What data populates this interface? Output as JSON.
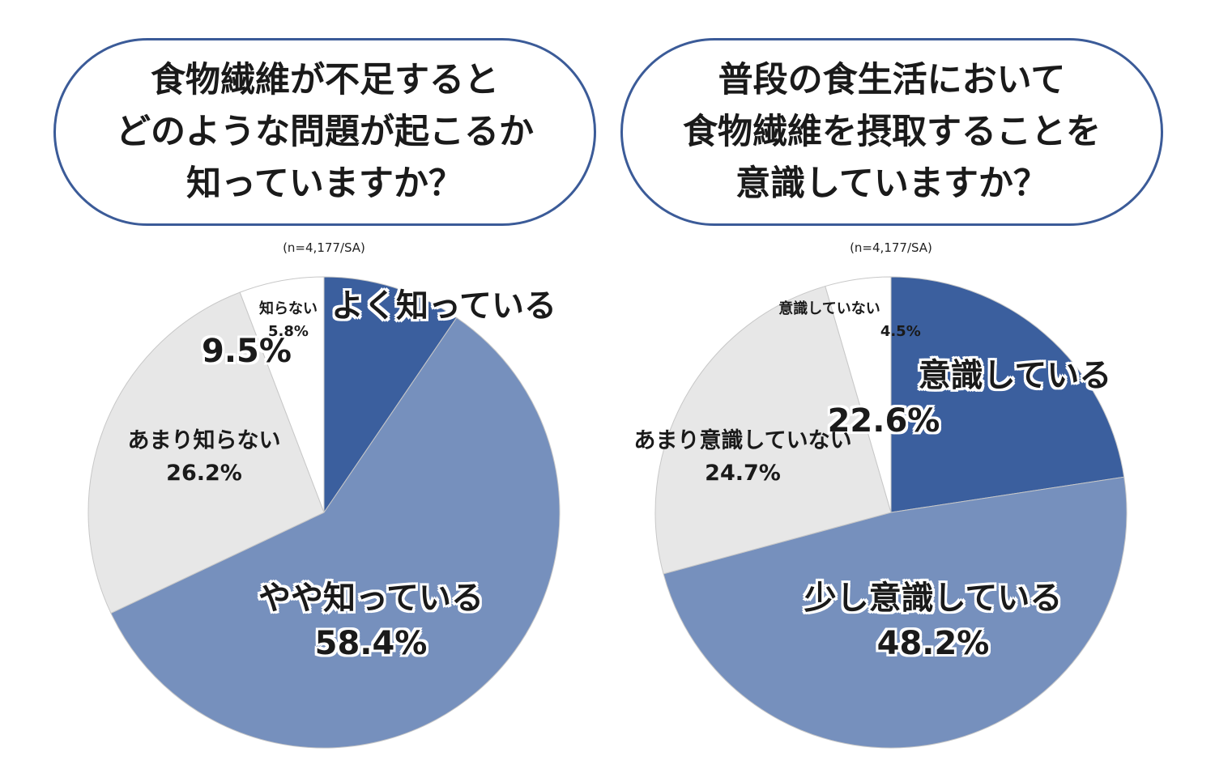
{
  "colors": {
    "border": "#3b5b98",
    "dark_blue": "#3b5f9e",
    "light_blue": "#7690bd",
    "light_gray": "#e7e7e7",
    "white": "#ffffff",
    "stroke": "#c8c8c8"
  },
  "chart_data": [
    {
      "type": "pie",
      "title": "食物繊維が不足すると\nどのような問題が起こるか\n知っていますか？",
      "subtitle": "(n=4,177/SA)",
      "slices": [
        {
          "label": "よく知っている",
          "value": 9.5,
          "value_text": "9.5%",
          "color": "#3b5f9e"
        },
        {
          "label": "やや知っている",
          "value": 58.4,
          "value_text": "58.4%",
          "color": "#7690bd"
        },
        {
          "label": "あまり知らない",
          "value": 26.2,
          "value_text": "26.2%",
          "color": "#e7e7e7"
        },
        {
          "label": "知らない",
          "value": 5.8,
          "value_text": "5.8%",
          "color": "#ffffff"
        }
      ]
    },
    {
      "type": "pie",
      "title": "普段の食生活において\n食物繊維を摂取することを\n意識していますか？",
      "subtitle": "(n=4,177/SA)",
      "slices": [
        {
          "label": "意識している",
          "value": 22.6,
          "value_text": "22.6%",
          "color": "#3b5f9e"
        },
        {
          "label": "少し意識している",
          "value": 48.2,
          "value_text": "48.2%",
          "color": "#7690bd"
        },
        {
          "label": "あまり意識していない",
          "value": 24.7,
          "value_text": "24.7%",
          "color": "#e7e7e7"
        },
        {
          "label": "意識していない",
          "value": 4.5,
          "value_text": "4.5%",
          "color": "#ffffff"
        }
      ]
    }
  ]
}
